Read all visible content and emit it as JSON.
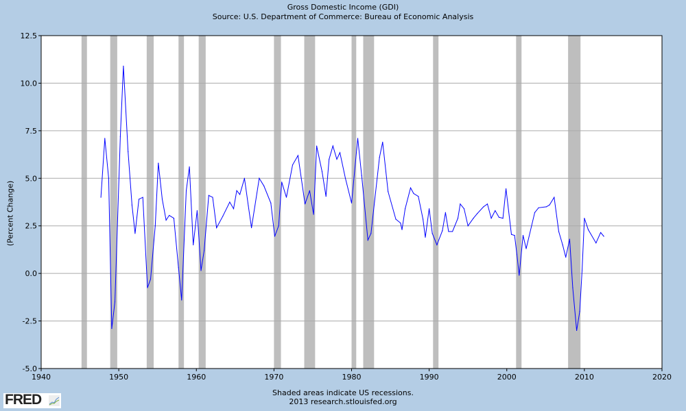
{
  "chart_data": {
    "type": "line",
    "title": "Gross Domestic Income (GDI)",
    "subtitle": "Source: U.S. Department of Commerce: Bureau of Economic Analysis",
    "ylabel": "(Percent Change)",
    "xlabel": "",
    "xlim": [
      1940,
      2020
    ],
    "ylim": [
      -5.0,
      12.5
    ],
    "xticks": [
      "1940",
      "1950",
      "1960",
      "1970",
      "1980",
      "1990",
      "2000",
      "2010",
      "2020"
    ],
    "yticks": [
      "-5.0",
      "-2.5",
      "0.0",
      "2.5",
      "5.0",
      "7.5",
      "10.0",
      "12.5"
    ],
    "grid": "horizontal",
    "line_color": "#0000ff",
    "recession_color": "#bebebe",
    "recessions": [
      [
        1945.2,
        1945.9
      ],
      [
        1948.9,
        1949.8
      ],
      [
        1953.6,
        1954.5
      ],
      [
        1957.7,
        1958.4
      ],
      [
        1960.3,
        1961.2
      ],
      [
        1970.0,
        1970.9
      ],
      [
        1973.9,
        1975.3
      ],
      [
        1980.0,
        1980.6
      ],
      [
        1981.5,
        1982.9
      ],
      [
        1990.5,
        1991.2
      ],
      [
        2001.2,
        2001.9
      ],
      [
        2007.9,
        2009.5
      ]
    ],
    "series": [
      {
        "name": "Gross Domestic Income (GDI)",
        "x": [
          1947.7,
          1948.2,
          1948.7,
          1949.1,
          1949.5,
          1950.2,
          1950.6,
          1951.2,
          1951.7,
          1952.1,
          1952.6,
          1953.1,
          1953.7,
          1954.1,
          1954.7,
          1955.1,
          1955.6,
          1956.1,
          1956.5,
          1957.1,
          1957.7,
          1958.1,
          1958.7,
          1959.1,
          1959.6,
          1960.1,
          1960.6,
          1961.0,
          1961.6,
          1962.1,
          1962.6,
          1963.4,
          1964.3,
          1964.8,
          1965.2,
          1965.6,
          1966.2,
          1966.7,
          1967.1,
          1968.1,
          1968.7,
          1969.6,
          1970.1,
          1970.6,
          1971.0,
          1971.6,
          1972.4,
          1973.1,
          1974.0,
          1974.6,
          1975.1,
          1975.5,
          1976.2,
          1976.7,
          1977.1,
          1977.6,
          1978.1,
          1978.5,
          1979.2,
          1980.0,
          1980.8,
          1981.3,
          1982.1,
          1982.5,
          1983.6,
          1984.0,
          1984.7,
          1985.7,
          1986.3,
          1986.5,
          1986.9,
          1987.6,
          1988.0,
          1988.6,
          1989.2,
          1989.5,
          1990.0,
          1990.4,
          1991.0,
          1991.7,
          1992.1,
          1992.5,
          1993.0,
          1993.7,
          1994.0,
          1994.5,
          1995.0,
          1995.7,
          1996.2,
          1997.0,
          1997.5,
          1998.0,
          1998.5,
          1999.0,
          1999.5,
          1999.9,
          2000.6,
          2001.0,
          2001.3,
          2001.6,
          2002.1,
          2002.5,
          2003.6,
          2004.1,
          2005.1,
          2005.5,
          2006.1,
          2006.7,
          2007.2,
          2007.6,
          2008.1,
          2008.5,
          2009.0,
          2009.4,
          2009.7,
          2010.0,
          2010.5,
          2011.5,
          2012.1,
          2012.5
        ],
        "values": [
          4.0,
          7.1,
          5.0,
          -2.9,
          -1.5,
          7.2,
          10.9,
          6.4,
          3.6,
          2.1,
          3.9,
          4.0,
          -0.75,
          -0.3,
          2.5,
          5.8,
          3.9,
          2.8,
          3.05,
          2.9,
          0.3,
          -1.4,
          4.35,
          5.6,
          1.5,
          3.3,
          0.15,
          1.2,
          4.1,
          4.0,
          2.4,
          3.0,
          3.75,
          3.4,
          4.35,
          4.15,
          5.0,
          3.55,
          2.4,
          5.0,
          4.6,
          3.7,
          1.95,
          2.5,
          4.8,
          4.0,
          5.7,
          6.2,
          3.65,
          4.35,
          3.1,
          6.7,
          5.35,
          4.05,
          6.0,
          6.7,
          6.0,
          6.35,
          5.0,
          3.7,
          7.1,
          5.15,
          1.75,
          2.1,
          6.1,
          6.9,
          4.3,
          2.85,
          2.65,
          2.3,
          3.4,
          4.5,
          4.2,
          4.05,
          2.85,
          1.9,
          3.4,
          2.1,
          1.5,
          2.25,
          3.2,
          2.2,
          2.2,
          2.9,
          3.65,
          3.4,
          2.5,
          2.9,
          3.15,
          3.5,
          3.65,
          2.9,
          3.3,
          2.95,
          2.9,
          4.45,
          2.05,
          2.0,
          1.0,
          -0.1,
          2.0,
          1.3,
          3.2,
          3.45,
          3.5,
          3.6,
          4.0,
          2.2,
          1.5,
          0.85,
          1.8,
          -0.75,
          -3.0,
          -2.0,
          0.15,
          2.9,
          2.3,
          1.6,
          2.15,
          1.95
        ]
      }
    ]
  },
  "footer": {
    "note": "Shaded areas indicate US recessions.",
    "credit": "2013 research.stlouisfed.org"
  },
  "logo": {
    "text": "FRED"
  }
}
